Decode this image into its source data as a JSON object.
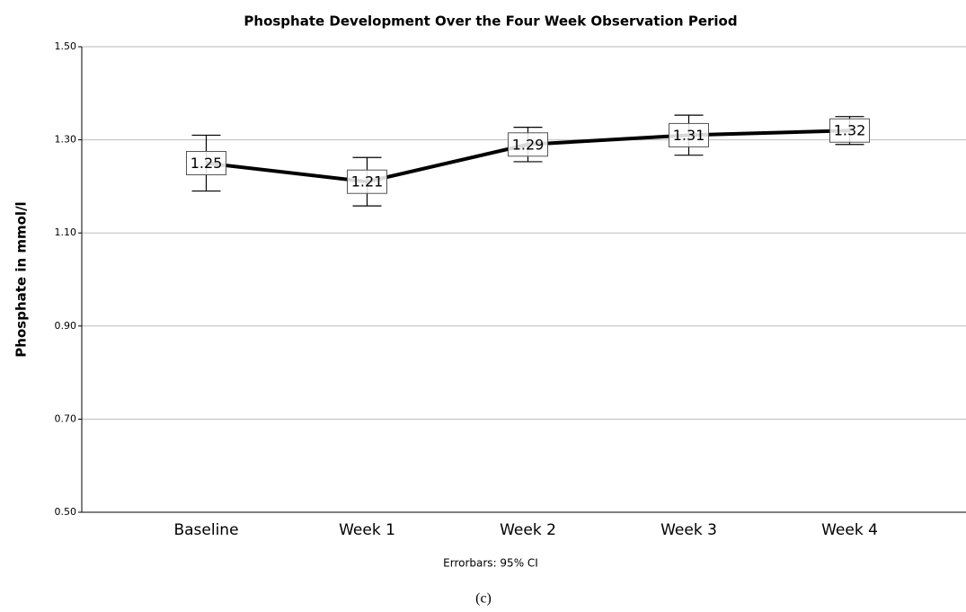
{
  "chart_data": {
    "type": "line",
    "title": "Phosphate Development Over the Four Week Observation Period",
    "y_label": "Phosphate in mmol/l",
    "note": "Errorbars: 95% CI",
    "caption": "(c)",
    "categories": [
      "Baseline",
      "Week 1",
      "Week 2",
      "Week 3",
      "Week 4"
    ],
    "series": [
      {
        "name": "Phosphate",
        "color": "#000000",
        "values": [
          1.25,
          1.21,
          1.29,
          1.31,
          1.32
        ],
        "errors": [
          0.06,
          0.052,
          0.037,
          0.043,
          0.03
        ]
      }
    ],
    "ylim": [
      0.5,
      1.5
    ],
    "yticks": [
      {
        "value": 0.5,
        "label": "0.50"
      },
      {
        "value": 0.7,
        "label": "0.70"
      },
      {
        "value": 0.9,
        "label": "0.90"
      },
      {
        "value": 1.1,
        "label": "1.10"
      },
      {
        "value": 1.3,
        "label": "1.30"
      },
      {
        "value": 1.5,
        "label": "1.50"
      }
    ],
    "grid": true
  }
}
